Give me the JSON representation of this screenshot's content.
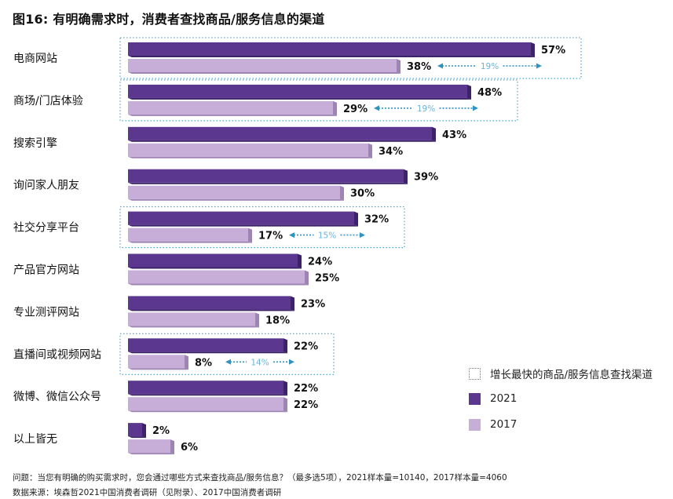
{
  "title": "图16: 有明确需求时，消费者查找商品/服务信息的渠道",
  "colors": {
    "s2021": "#5b3790",
    "s2021_side": "#3c2266",
    "s2017": "#c6aed9",
    "s2017_side": "#9d84b3",
    "highlight": "#2f93bf",
    "growth_text": "#6cb4d6"
  },
  "chart_data": {
    "type": "bar",
    "orientation": "horizontal",
    "categories": [
      "电商网站",
      "商场/门店体验",
      "搜索引擎",
      "询问家人朋友",
      "社交分享平台",
      "产品官方网站",
      "专业测评网站",
      "直播间或视频网站",
      "微博、微信公众号",
      "以上皆无"
    ],
    "series": [
      {
        "name": "2021",
        "values": [
          57,
          48,
          43,
          39,
          32,
          24,
          23,
          22,
          22,
          2
        ],
        "labels": [
          "57%",
          "48%",
          "43%",
          "39%",
          "32%",
          "24%",
          "23%",
          "22%",
          "22%",
          "2%"
        ]
      },
      {
        "name": "2017",
        "values": [
          38,
          29,
          34,
          30,
          17,
          25,
          18,
          8,
          22,
          6
        ],
        "labels": [
          "38%",
          "29%",
          "34%",
          "30%",
          "17%",
          "25%",
          "18%",
          "8%",
          "22%",
          "6%"
        ]
      }
    ],
    "highlighted": [
      {
        "category": "电商网站",
        "growth": "19%"
      },
      {
        "category": "商场/门店体验",
        "growth": "19%"
      },
      {
        "category": "社交分享平台",
        "growth": "15%"
      },
      {
        "category": "直播间或视频网站",
        "growth": "14%"
      }
    ],
    "xlim": [
      0,
      60
    ],
    "legend": [
      "增长最快的商品/服务信息查找渠道",
      "2021",
      "2017"
    ],
    "legend_position": "bottom-right"
  },
  "notes": {
    "question": "问题：当您有明确的购买需求时，您会通过哪些方式来查找商品/服务信息？（最多选5项），2021样本量=10140，2017样本量=4060",
    "source": "数据来源：埃森哲2021中国消费者调研（见附录）、2017中国消费者调研"
  }
}
